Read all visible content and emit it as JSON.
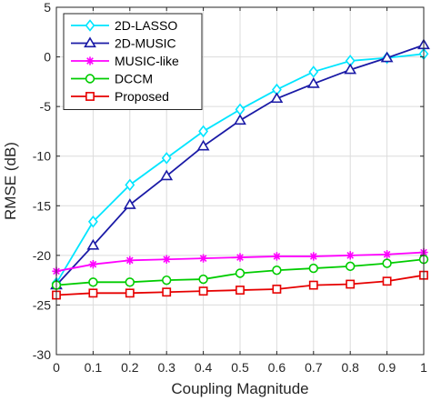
{
  "chart_data": {
    "type": "line",
    "title": "",
    "xlabel": "Coupling Magnitude",
    "ylabel": "RMSE (dB)",
    "xlim": [
      0,
      1
    ],
    "ylim": [
      -30,
      5
    ],
    "x": [
      0,
      0.1,
      0.2,
      0.3,
      0.4,
      0.5,
      0.6,
      0.7,
      0.8,
      0.9,
      1
    ],
    "x_tick_labels": [
      "0",
      "0.1",
      "0.2",
      "0.3",
      "0.4",
      "0.5",
      "0.6",
      "0.7",
      "0.8",
      "0.9",
      "1"
    ],
    "y_ticks": [
      -30,
      -25,
      -20,
      -15,
      -10,
      -5,
      0,
      5
    ],
    "y_tick_labels": [
      "-30",
      "-25",
      "-20",
      "-15",
      "-10",
      "-5",
      "0",
      "5"
    ],
    "grid": true,
    "legend_position": "top-left",
    "series": [
      {
        "name": "2D-LASSO",
        "color": "#00e5ff",
        "marker": "diamond",
        "values": [
          -22.8,
          -16.6,
          -12.9,
          -10.2,
          -7.5,
          -5.3,
          -3.3,
          -1.5,
          -0.4,
          -0.1,
          0.3
        ]
      },
      {
        "name": "2D-MUSIC",
        "color": "#1a1aa6",
        "marker": "triangle",
        "values": [
          -23.0,
          -19.0,
          -14.9,
          -12.0,
          -9.0,
          -6.4,
          -4.2,
          -2.7,
          -1.3,
          -0.1,
          1.2
        ]
      },
      {
        "name": "MUSIC-like",
        "color": "#ff00ff",
        "marker": "asterisk",
        "values": [
          -21.6,
          -20.9,
          -20.5,
          -20.4,
          -20.3,
          -20.2,
          -20.1,
          -20.1,
          -20.0,
          -19.9,
          -19.7
        ]
      },
      {
        "name": "DCCM",
        "color": "#00cc00",
        "marker": "circle",
        "values": [
          -23.0,
          -22.7,
          -22.7,
          -22.5,
          -22.4,
          -21.8,
          -21.5,
          -21.3,
          -21.1,
          -20.8,
          -20.4
        ]
      },
      {
        "name": "Proposed",
        "color": "#e60000",
        "marker": "square",
        "values": [
          -24.0,
          -23.8,
          -23.8,
          -23.7,
          -23.6,
          -23.5,
          -23.4,
          -23.0,
          -22.9,
          -22.6,
          -22.0
        ]
      }
    ]
  }
}
